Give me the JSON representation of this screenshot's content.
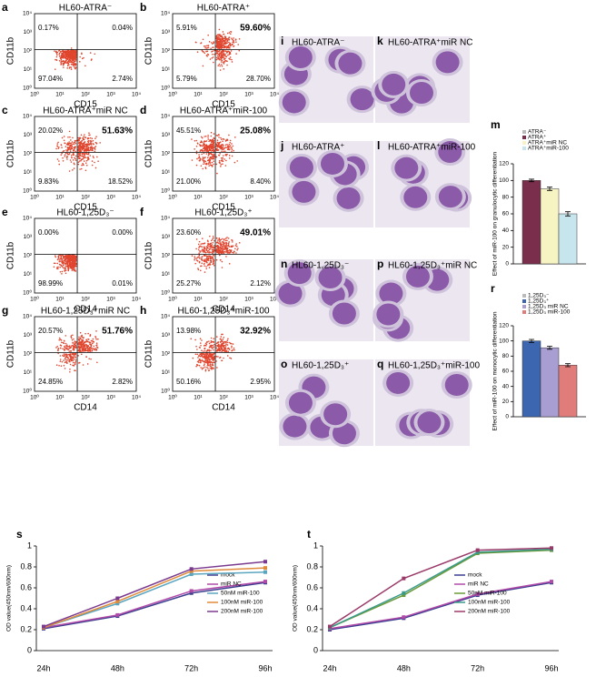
{
  "flow_panels": [
    {
      "letter": "a",
      "title": "HL60-ATRA⁻",
      "y_label": "CD11b",
      "x_label": "CD15",
      "quadrants": [
        "0.17%",
        "0.04%",
        "97.04%",
        "2.74%"
      ],
      "bold_upper_right": false
    },
    {
      "letter": "b",
      "title": "HL60-ATRA⁺",
      "y_label": "CD11b",
      "x_label": "CD15",
      "quadrants": [
        "5.91%",
        "59.60%",
        "5.79%",
        "28.70%"
      ],
      "bold_upper_right": true
    },
    {
      "letter": "c",
      "title": "HL60-ATRA⁺miR NC",
      "y_label": "CD11b",
      "x_label": "CD15",
      "quadrants": [
        "20.02%",
        "51.63%",
        "9.83%",
        "18.52%"
      ],
      "bold_upper_right": true
    },
    {
      "letter": "d",
      "title": "HL60-ATRA⁺miR-100",
      "y_label": "CD11b",
      "x_label": "CD15",
      "quadrants": [
        "45.51%",
        "25.08%",
        "21.00%",
        "8.40%"
      ],
      "bold_upper_right": true
    },
    {
      "letter": "e",
      "title": "HL60-1,25D₃⁻",
      "y_label": "CD11b",
      "x_label": "CD14",
      "quadrants": [
        "0.00%",
        "0.00%",
        "98.99%",
        "0.01%"
      ],
      "bold_upper_right": false
    },
    {
      "letter": "f",
      "title": "HL60-1,25D₃⁺",
      "y_label": "CD11b",
      "x_label": "CD14",
      "quadrants": [
        "23.60%",
        "49.01%",
        "25.27%",
        "2.12%"
      ],
      "bold_upper_right": true
    },
    {
      "letter": "g",
      "title": "HL60-1,25D₃⁺miR NC",
      "y_label": "CD11b",
      "x_label": "CD14",
      "quadrants": [
        "20.57%",
        "51.76%",
        "24.85%",
        "2.82%"
      ],
      "bold_upper_right": true
    },
    {
      "letter": "h",
      "title": "HL60-1,25D₃⁺miR-100",
      "y_label": "CD11b",
      "x_label": "CD14",
      "quadrants": [
        "13.98%",
        "32.92%",
        "50.16%",
        "2.95%"
      ],
      "bold_upper_right": true
    }
  ],
  "flow_axis_ticks": [
    "10⁰",
    "10¹",
    "10²",
    "10³",
    "10⁴"
  ],
  "micrographs": [
    {
      "letter": "i",
      "title": "HL60-ATRA⁻"
    },
    {
      "letter": "k",
      "title": "HL60-ATRA⁺miR NC"
    },
    {
      "letter": "j",
      "title": "HL60-ATRA⁺"
    },
    {
      "letter": "l",
      "title": "HL60-ATRA⁺miR-100"
    },
    {
      "letter": "n",
      "title": "HL60-1,25D₃⁻"
    },
    {
      "letter": "p",
      "title": "HL60-1,25D₃⁺miR NC"
    },
    {
      "letter": "o",
      "title": "HL60-1,25D₃⁺"
    },
    {
      "letter": "q",
      "title": "HL60-1,25D₃⁺miR-100"
    }
  ],
  "chart_data": [
    {
      "type": "bar",
      "letter": "m",
      "y_label": "Effect of miR-100 on granulocytic differentiation",
      "ylim": [
        0,
        120
      ],
      "yticks": [
        0,
        20,
        40,
        60,
        80,
        100,
        120
      ],
      "series": [
        {
          "name": "ATRA⁻",
          "color": "#bbbbbb",
          "values": [
            null
          ],
          "errors": [
            null
          ]
        },
        {
          "name": "ATRA⁺",
          "color": "#7b2d4c",
          "values": [
            100
          ],
          "errors": [
            1.5
          ]
        },
        {
          "name": "ATRA⁺miR NC",
          "color": "#f6f4c2",
          "values": [
            90
          ],
          "errors": [
            2
          ]
        },
        {
          "name": "ATRA⁺miR-100",
          "color": "#c7e5ec",
          "values": [
            60
          ],
          "errors": [
            2.5
          ]
        }
      ]
    },
    {
      "type": "bar",
      "letter": "r",
      "y_label": "Effect of miR-100 on monocytic differentiation",
      "ylim": [
        0,
        120
      ],
      "yticks": [
        0,
        20,
        40,
        60,
        80,
        100,
        120
      ],
      "series": [
        {
          "name": "1,25D₃⁻",
          "color": "#bbbbbb",
          "values": [
            null
          ],
          "errors": [
            null
          ]
        },
        {
          "name": "1,25D₃⁺",
          "color": "#3d66b0",
          "values": [
            100
          ],
          "errors": [
            2
          ]
        },
        {
          "name": "1,25D₃ miR NC",
          "color": "#a99ed2",
          "values": [
            91
          ],
          "errors": [
            2
          ]
        },
        {
          "name": "1,25D₃ miR-100",
          "color": "#e07c7a",
          "values": [
            68
          ],
          "errors": [
            2
          ]
        }
      ]
    },
    {
      "type": "line",
      "letter": "s",
      "y_label": "OD value(450nm/600nm)",
      "categories": [
        "24h",
        "48h",
        "72h",
        "96h"
      ],
      "ylim": [
        0,
        1
      ],
      "yticks": [
        0,
        0.2,
        0.4,
        0.6,
        0.8,
        1
      ],
      "series": [
        {
          "name": "mock",
          "color": "#3b3f8f",
          "values": [
            0.21,
            0.33,
            0.55,
            0.65
          ]
        },
        {
          "name": "miR NC",
          "color": "#b04aa8",
          "values": [
            0.22,
            0.34,
            0.57,
            0.66
          ]
        },
        {
          "name": "50nM miR-100",
          "color": "#5aa6c0",
          "values": [
            0.22,
            0.45,
            0.73,
            0.75
          ]
        },
        {
          "name": "100nM miR-100",
          "color": "#e08a3a",
          "values": [
            0.22,
            0.47,
            0.76,
            0.79
          ]
        },
        {
          "name": "200nM miR-100",
          "color": "#7a3a8f",
          "values": [
            0.23,
            0.5,
            0.78,
            0.85
          ]
        }
      ]
    },
    {
      "type": "line",
      "letter": "t",
      "y_label": "OD value(450nm/600nm)",
      "categories": [
        "24h",
        "48h",
        "72h",
        "96h"
      ],
      "ylim": [
        0,
        1
      ],
      "yticks": [
        0,
        0.2,
        0.4,
        0.6,
        0.8,
        1
      ],
      "series": [
        {
          "name": "mock",
          "color": "#3b3f8f",
          "values": [
            0.2,
            0.31,
            0.53,
            0.65
          ]
        },
        {
          "name": "miR NC",
          "color": "#b04aa8",
          "values": [
            0.21,
            0.32,
            0.54,
            0.66
          ]
        },
        {
          "name": "50nM miR-100",
          "color": "#6a9a3a",
          "values": [
            0.22,
            0.53,
            0.93,
            0.96
          ]
        },
        {
          "name": "100nM miR-100",
          "color": "#3a9a8a",
          "values": [
            0.22,
            0.55,
            0.94,
            0.97
          ]
        },
        {
          "name": "200nM miR-100",
          "color": "#9a3a6a",
          "values": [
            0.23,
            0.69,
            0.96,
            0.98
          ]
        }
      ]
    }
  ]
}
